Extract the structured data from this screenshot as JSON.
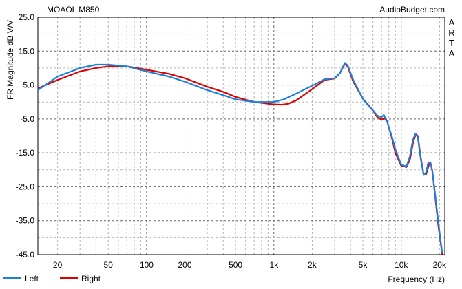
{
  "title": "MOAOL M850",
  "watermark": "AudioBudget.com",
  "side_label": "ARTA",
  "chart_data": {
    "type": "line",
    "xscale": "log",
    "xlim": [
      14,
      22000
    ],
    "ylim": [
      -45,
      25
    ],
    "xlabel": "Frequency (Hz)",
    "ylabel": "FR Magnitude dB V/V",
    "x_ticks": [
      20,
      50,
      100,
      200,
      500,
      1000,
      2000,
      5000,
      10000,
      20000
    ],
    "x_tick_labels": [
      "20",
      "50",
      "100",
      "200",
      "500",
      "1k",
      "2k",
      "5k",
      "10k",
      "20k"
    ],
    "y_ticks": [
      25,
      15,
      5,
      -5,
      -15,
      -25,
      -35,
      -45
    ],
    "y_tick_labels": [
      "25.0",
      "15.0",
      "5.0",
      "-5.0",
      "-15.0",
      "-25.0",
      "-35.0",
      "-45.0"
    ],
    "grid": true,
    "legend_position": "bottom-left",
    "series": [
      {
        "name": "Right",
        "color": "#e00000",
        "points": [
          [
            14,
            4
          ],
          [
            20,
            6.5
          ],
          [
            30,
            9
          ],
          [
            40,
            10
          ],
          [
            50,
            10.5
          ],
          [
            70,
            10.5
          ],
          [
            100,
            9.5
          ],
          [
            150,
            8.3
          ],
          [
            200,
            7
          ],
          [
            300,
            4.5
          ],
          [
            400,
            3
          ],
          [
            500,
            1.5
          ],
          [
            700,
            0
          ],
          [
            1000,
            -0.7
          ],
          [
            1150,
            -0.8
          ],
          [
            1300,
            -0.5
          ],
          [
            1500,
            0.5
          ],
          [
            2000,
            3.8
          ],
          [
            2500,
            6.5
          ],
          [
            3000,
            6.9
          ],
          [
            3300,
            8.5
          ],
          [
            3600,
            11.2
          ],
          [
            3800,
            10.5
          ],
          [
            4200,
            6
          ],
          [
            5000,
            1
          ],
          [
            5500,
            -0.8
          ],
          [
            6000,
            -2.5
          ],
          [
            6500,
            -4.5
          ],
          [
            7000,
            -5.2
          ],
          [
            7400,
            -4.8
          ],
          [
            7800,
            -6
          ],
          [
            8500,
            -11
          ],
          [
            9000,
            -15
          ],
          [
            10000,
            -18.8
          ],
          [
            11000,
            -19.2
          ],
          [
            11700,
            -17
          ],
          [
            12400,
            -12
          ],
          [
            13000,
            -9.5
          ],
          [
            13500,
            -10
          ],
          [
            14200,
            -16
          ],
          [
            15000,
            -21.5
          ],
          [
            15700,
            -21.3
          ],
          [
            16500,
            -18.5
          ],
          [
            17000,
            -18
          ],
          [
            17600,
            -20.5
          ],
          [
            18500,
            -28
          ],
          [
            19500,
            -36
          ],
          [
            20500,
            -42
          ],
          [
            21000,
            -45
          ]
        ]
      },
      {
        "name": "Left",
        "color": "#1a7fdf",
        "points": [
          [
            14,
            3.5
          ],
          [
            20,
            7.5
          ],
          [
            30,
            10
          ],
          [
            40,
            11
          ],
          [
            50,
            11
          ],
          [
            70,
            10.5
          ],
          [
            100,
            9
          ],
          [
            150,
            7.5
          ],
          [
            200,
            6
          ],
          [
            300,
            3.5
          ],
          [
            400,
            2
          ],
          [
            500,
            0.8
          ],
          [
            700,
            0
          ],
          [
            900,
            0
          ],
          [
            1000,
            0
          ],
          [
            1200,
            0.8
          ],
          [
            1500,
            2.5
          ],
          [
            2000,
            4.8
          ],
          [
            2500,
            6.7
          ],
          [
            3000,
            7
          ],
          [
            3300,
            8.5
          ],
          [
            3600,
            11.5
          ],
          [
            3800,
            10.8
          ],
          [
            4200,
            6.5
          ],
          [
            5000,
            1
          ],
          [
            5500,
            -1
          ],
          [
            6000,
            -2.5
          ],
          [
            6500,
            -4
          ],
          [
            7000,
            -4.5
          ],
          [
            7300,
            -3.8
          ],
          [
            7700,
            -5.5
          ],
          [
            8500,
            -10.5
          ],
          [
            9000,
            -14
          ],
          [
            10000,
            -18.5
          ],
          [
            11000,
            -19
          ],
          [
            11700,
            -16
          ],
          [
            12400,
            -11
          ],
          [
            13000,
            -9.3
          ],
          [
            13500,
            -10.5
          ],
          [
            14200,
            -16.5
          ],
          [
            15000,
            -21.5
          ],
          [
            15600,
            -21
          ],
          [
            16300,
            -18
          ],
          [
            16900,
            -17.8
          ],
          [
            17500,
            -20
          ],
          [
            18500,
            -27.5
          ],
          [
            19500,
            -35
          ],
          [
            20500,
            -41.5
          ],
          [
            21000,
            -44.5
          ]
        ]
      }
    ]
  }
}
